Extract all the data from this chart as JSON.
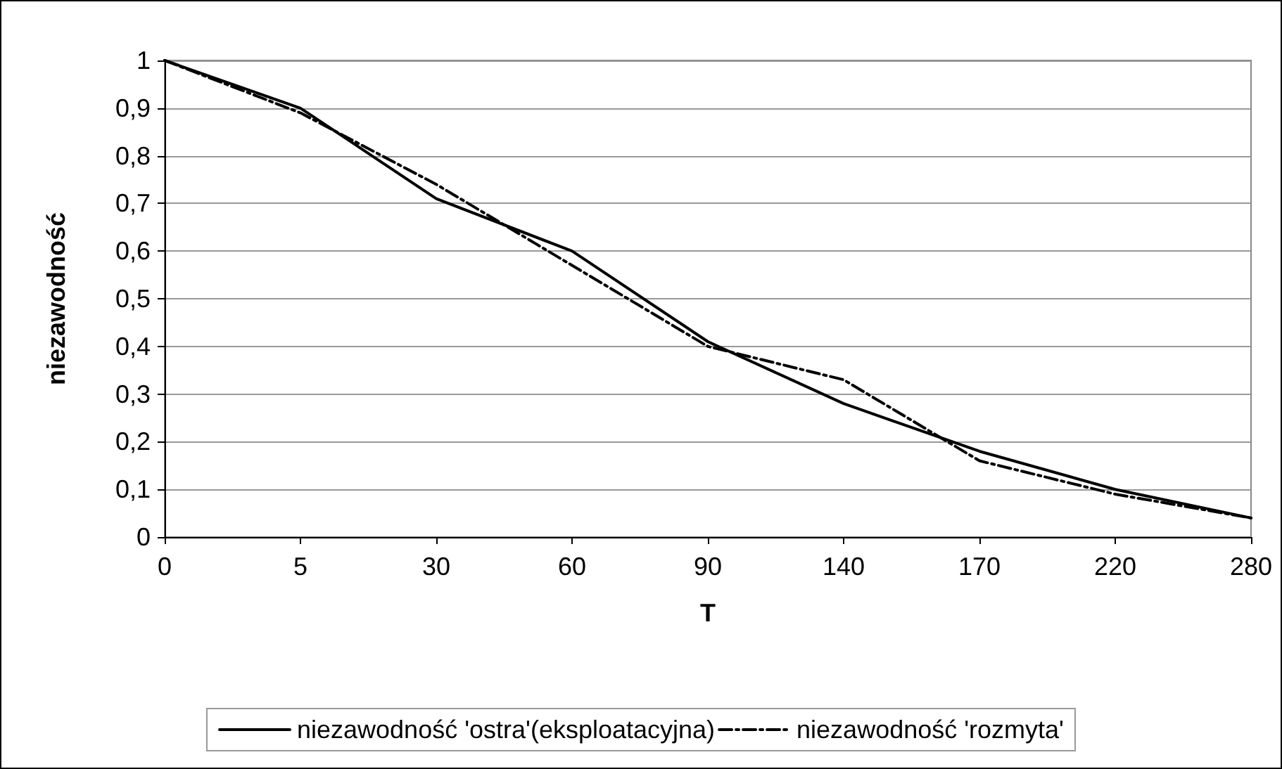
{
  "chart_data": {
    "type": "line",
    "xlabel": "T",
    "ylabel": "niezawodność",
    "categories": [
      "0",
      "5",
      "30",
      "60",
      "90",
      "140",
      "170",
      "220",
      "280"
    ],
    "series": [
      {
        "name": "niezawodność 'ostra'(eksploatacyjna)",
        "color": "#000000",
        "line_style": "solid",
        "values": [
          1,
          0.9,
          0.71,
          0.6,
          0.41,
          0.28,
          0.18,
          0.1,
          0.04
        ]
      },
      {
        "name": "niezawodność 'rozmyta'",
        "color": "#000000",
        "line_style": "dashed",
        "values": [
          1,
          0.89,
          0.74,
          0.57,
          0.4,
          0.33,
          0.16,
          0.09,
          0.04
        ]
      }
    ],
    "ylim": [
      0,
      1
    ],
    "yticks": [
      0,
      {
        "value": 0.1,
        "label": "0,1"
      },
      {
        "value": 0.2,
        "label": "0,2"
      },
      {
        "value": 0.3,
        "label": "0,3"
      },
      {
        "value": 0.4,
        "label": "0,4"
      },
      {
        "value": 0.5,
        "label": "0,5"
      },
      {
        "value": 0.6,
        "label": "0,6"
      },
      {
        "value": 0.7,
        "label": "0,7"
      },
      {
        "value": 0.8,
        "label": "0,8"
      },
      {
        "value": 0.9,
        "label": "0,9"
      },
      1
    ],
    "grid": "y",
    "legend": "bottom",
    "marker": "none"
  }
}
